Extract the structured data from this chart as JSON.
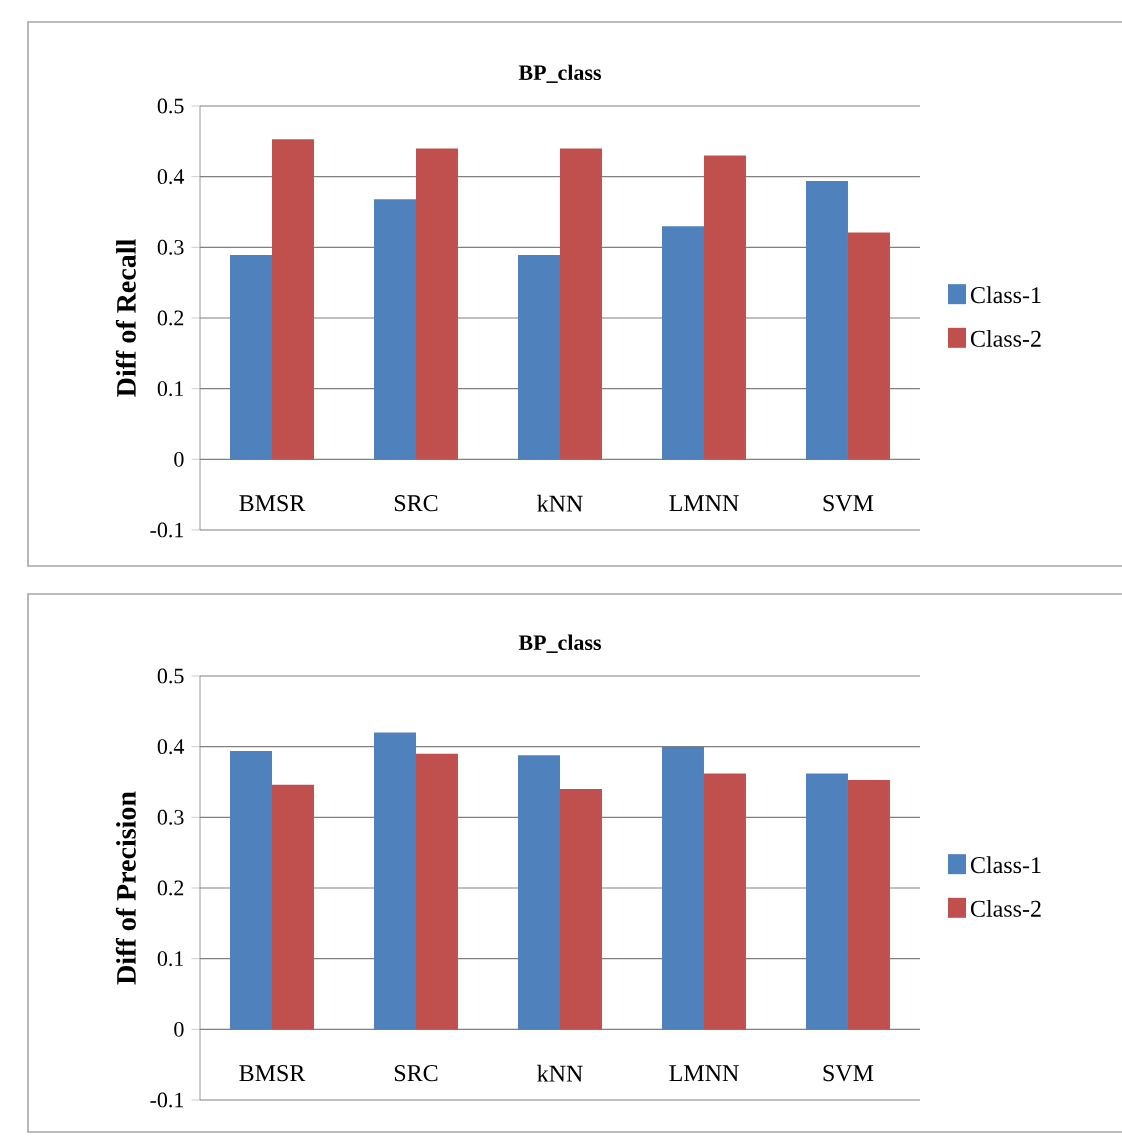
{
  "chart_data": [
    {
      "type": "bar",
      "title": "BP_class",
      "ylabel": "Diff of Recall",
      "categories": [
        "BMSR",
        "SRC",
        "kNN",
        "LMNN",
        "SVM"
      ],
      "series": [
        {
          "name": "Class-1",
          "color": "#4f81bd",
          "values": [
            0.289,
            0.368,
            0.289,
            0.33,
            0.394
          ]
        },
        {
          "name": "Class-2",
          "color": "#c0504d",
          "values": [
            0.453,
            0.44,
            0.44,
            0.43,
            0.321
          ]
        }
      ],
      "ylim": [
        -0.1,
        0.5
      ],
      "yticks": [
        -0.1,
        0,
        0.1,
        0.2,
        0.3,
        0.4,
        0.5
      ],
      "grid": "y",
      "legend": "right"
    },
    {
      "type": "bar",
      "title": "BP_class",
      "ylabel": "Diff of Precision",
      "categories": [
        "BMSR",
        "SRC",
        "kNN",
        "LMNN",
        "SVM"
      ],
      "series": [
        {
          "name": "Class-1",
          "color": "#4f81bd",
          "values": [
            0.394,
            0.42,
            0.388,
            0.4,
            0.362
          ]
        },
        {
          "name": "Class-2",
          "color": "#c0504d",
          "values": [
            0.346,
            0.39,
            0.34,
            0.362,
            0.353
          ]
        }
      ],
      "ylim": [
        -0.1,
        0.5
      ],
      "yticks": [
        -0.1,
        0,
        0.1,
        0.2,
        0.3,
        0.4,
        0.5
      ],
      "grid": "y",
      "legend": "right"
    }
  ]
}
